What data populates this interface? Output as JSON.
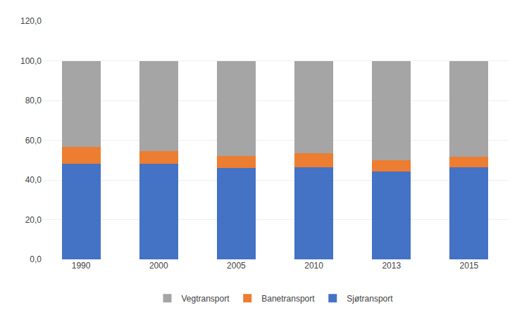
{
  "chart_data": {
    "type": "bar",
    "stacked": true,
    "grid": true,
    "legend": "bottom",
    "categories": [
      "1990",
      "2000",
      "2005",
      "2010",
      "2013",
      "2015"
    ],
    "series": [
      {
        "name": "Sjøtransport",
        "color": "#4472C4",
        "values": [
          48.3,
          48.2,
          46.1,
          46.5,
          44.2,
          46.2
        ]
      },
      {
        "name": "Banetransport",
        "color": "#ED7D31",
        "values": [
          8.5,
          6.2,
          6.0,
          6.8,
          5.8,
          5.5
        ]
      },
      {
        "name": "Vegtransport",
        "color": "#A5A5A5",
        "values": [
          43.2,
          45.6,
          47.9,
          46.7,
          50.0,
          48.3
        ]
      }
    ],
    "ylim": [
      0,
      120
    ],
    "yticks": [
      {
        "value": 0,
        "label": "0,0"
      },
      {
        "value": 20,
        "label": "20,0"
      },
      {
        "value": 40,
        "label": "40,0"
      },
      {
        "value": 60,
        "label": "60,0"
      },
      {
        "value": 80,
        "label": "80,0"
      },
      {
        "value": 100,
        "label": "100,0"
      },
      {
        "value": 120,
        "label": "120,0"
      }
    ]
  }
}
